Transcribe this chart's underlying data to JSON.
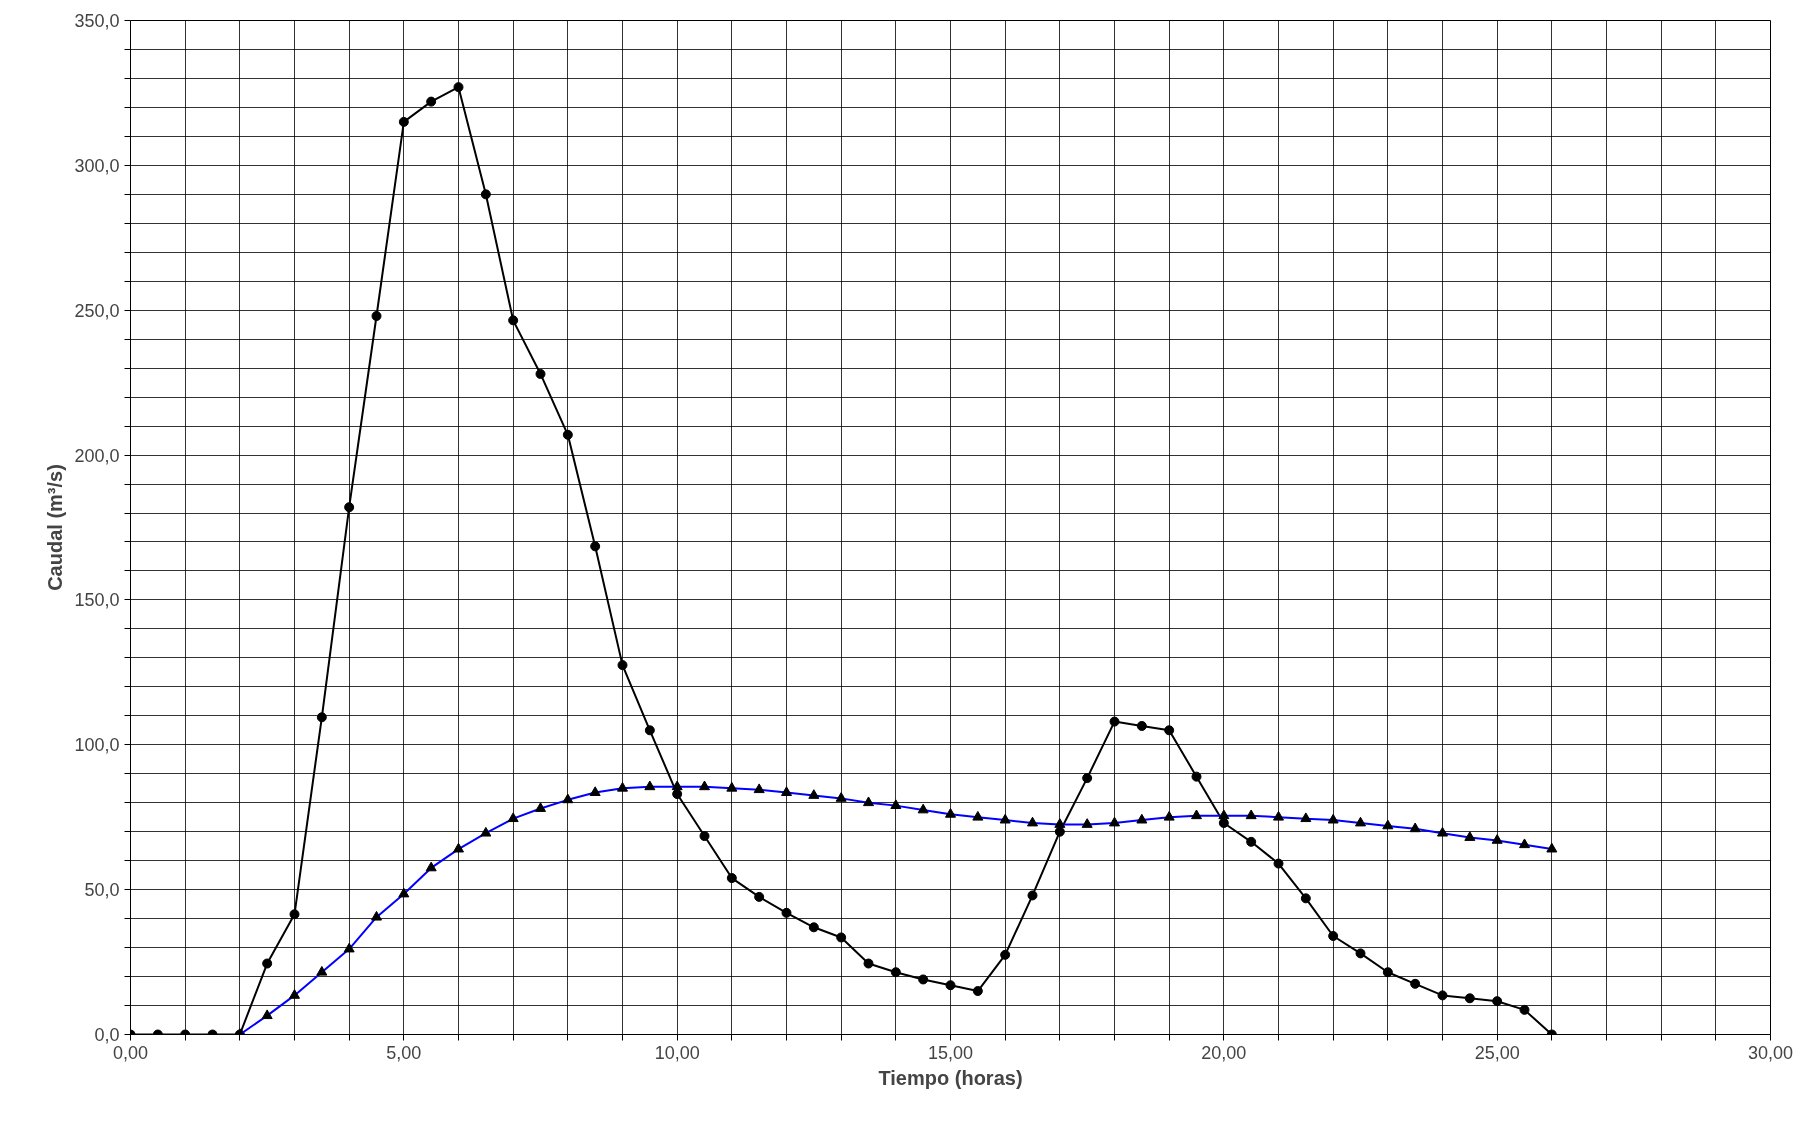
{
  "chart_data": {
    "type": "line",
    "xlabel": "Tiempo (horas)",
    "ylabel": "Caudal (m³/s)",
    "xlim": [
      0,
      30
    ],
    "ylim": [
      0,
      350
    ],
    "grid": true,
    "line_style": "solid",
    "xticks": [
      {
        "value": 0,
        "label": "0,00"
      },
      {
        "value": 1,
        "label": null
      },
      {
        "value": 2,
        "label": null
      },
      {
        "value": 3,
        "label": null
      },
      {
        "value": 4,
        "label": null
      },
      {
        "value": 5,
        "label": "5,00"
      },
      {
        "value": 6,
        "label": null
      },
      {
        "value": 7,
        "label": null
      },
      {
        "value": 8,
        "label": null
      },
      {
        "value": 9,
        "label": null
      },
      {
        "value": 10,
        "label": "10,00"
      },
      {
        "value": 11,
        "label": null
      },
      {
        "value": 12,
        "label": null
      },
      {
        "value": 13,
        "label": null
      },
      {
        "value": 14,
        "label": null
      },
      {
        "value": 15,
        "label": "15,00"
      },
      {
        "value": 16,
        "label": null
      },
      {
        "value": 17,
        "label": null
      },
      {
        "value": 18,
        "label": null
      },
      {
        "value": 19,
        "label": null
      },
      {
        "value": 20,
        "label": "20,00"
      },
      {
        "value": 21,
        "label": null
      },
      {
        "value": 22,
        "label": null
      },
      {
        "value": 23,
        "label": null
      },
      {
        "value": 24,
        "label": null
      },
      {
        "value": 25,
        "label": "25,00"
      },
      {
        "value": 26,
        "label": null
      },
      {
        "value": 27,
        "label": null
      },
      {
        "value": 28,
        "label": null
      },
      {
        "value": 29,
        "label": null
      },
      {
        "value": 30,
        "label": "30,00"
      }
    ],
    "yticks": [
      {
        "value": 0,
        "label": "0,0"
      },
      {
        "value": 10,
        "label": null
      },
      {
        "value": 20,
        "label": null
      },
      {
        "value": 30,
        "label": null
      },
      {
        "value": 40,
        "label": null
      },
      {
        "value": 50,
        "label": "50,0"
      },
      {
        "value": 60,
        "label": null
      },
      {
        "value": 70,
        "label": null
      },
      {
        "value": 80,
        "label": null
      },
      {
        "value": 90,
        "label": null
      },
      {
        "value": 100,
        "label": "100,0"
      },
      {
        "value": 110,
        "label": null
      },
      {
        "value": 120,
        "label": null
      },
      {
        "value": 130,
        "label": null
      },
      {
        "value": 140,
        "label": null
      },
      {
        "value": 150,
        "label": "150,0"
      },
      {
        "value": 160,
        "label": null
      },
      {
        "value": 170,
        "label": null
      },
      {
        "value": 180,
        "label": null
      },
      {
        "value": 190,
        "label": null
      },
      {
        "value": 200,
        "label": "200,0"
      },
      {
        "value": 210,
        "label": null
      },
      {
        "value": 220,
        "label": null
      },
      {
        "value": 230,
        "label": null
      },
      {
        "value": 240,
        "label": null
      },
      {
        "value": 250,
        "label": "250,0"
      },
      {
        "value": 260,
        "label": null
      },
      {
        "value": 270,
        "label": null
      },
      {
        "value": 280,
        "label": null
      },
      {
        "value": 290,
        "label": null
      },
      {
        "value": 300,
        "label": "300,0"
      },
      {
        "value": 310,
        "label": null
      },
      {
        "value": 320,
        "label": null
      },
      {
        "value": 330,
        "label": null
      },
      {
        "value": 340,
        "label": null
      },
      {
        "value": 350,
        "label": "350,0"
      }
    ],
    "series": [
      {
        "color": "#000000",
        "marker": "circle",
        "x": [
          0,
          0.5,
          1,
          1.5,
          2,
          2.5,
          3,
          3.5,
          4,
          4.5,
          5,
          5.5,
          6,
          6.5,
          7,
          7.5,
          8,
          8.5,
          9,
          9.5,
          10,
          10.5,
          11,
          11.5,
          12,
          12.5,
          13,
          13.5,
          14,
          14.5,
          15,
          15.5,
          16,
          16.5,
          17,
          17.5,
          18,
          18.5,
          19,
          19.5,
          20,
          20.5,
          21,
          21.5,
          22,
          22.5,
          23,
          23.5,
          24,
          24.5,
          25,
          25.5,
          26
        ],
        "values": [
          0,
          0,
          0,
          0,
          0,
          24.5,
          41.5,
          109.5,
          182,
          248,
          315,
          322,
          327,
          290,
          246.5,
          228,
          207,
          168.5,
          127.5,
          105,
          83,
          68.5,
          54,
          47.5,
          42,
          37,
          33.5,
          24.5,
          21.5,
          19,
          17,
          15,
          27.5,
          48,
          70,
          88.5,
          108,
          106.5,
          105,
          89,
          73,
          66.5,
          59,
          47,
          34,
          28,
          21.5,
          17.5,
          13.5,
          12.5,
          11.5,
          8.5,
          0
        ]
      },
      {
        "color": "#0000ff",
        "marker": "triangle",
        "x": [
          2,
          2.5,
          3,
          3.5,
          4,
          4.5,
          5,
          5.5,
          6,
          6.5,
          7,
          7.5,
          8,
          8.5,
          9,
          9.5,
          10,
          10.5,
          11,
          11.5,
          12,
          12.5,
          13,
          13.5,
          14,
          14.5,
          15,
          15.5,
          16,
          16.5,
          17,
          17.5,
          18,
          18.5,
          19,
          19.5,
          20,
          20.5,
          21,
          21.5,
          22,
          22.5,
          23,
          23.5,
          24,
          24.5,
          25,
          25.5,
          26
        ],
        "values": [
          0,
          6.5,
          13.5,
          21.5,
          29.5,
          40.5,
          48.5,
          57.5,
          64,
          69.5,
          74.5,
          78,
          81,
          83.5,
          85,
          85.5,
          85.5,
          85.5,
          85,
          84.5,
          83.5,
          82.5,
          81.5,
          80,
          79,
          77.5,
          76,
          75,
          74,
          73,
          72.5,
          72.5,
          73,
          74,
          75,
          75.5,
          75.5,
          75.5,
          75,
          74.5,
          74,
          73,
          72,
          71,
          69.5,
          68,
          67,
          65.5,
          64
        ]
      }
    ]
  }
}
